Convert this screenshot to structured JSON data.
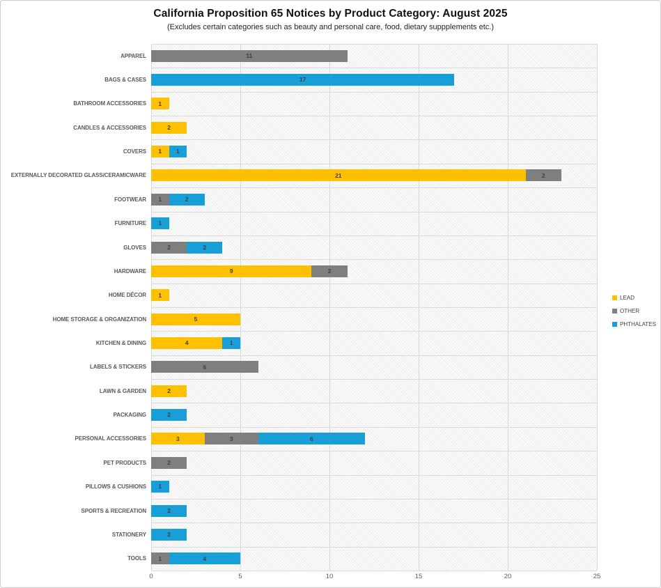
{
  "chart_data": {
    "type": "bar",
    "orientation": "horizontal",
    "stacked": true,
    "title": "California Proposition 65 Notices by Product Category: August 2025",
    "subtitle": "(Excludes certain categories such as beauty and personal care, food, dietary suppplements etc.)",
    "categories": [
      "APPAREL",
      "BAGS & CASES",
      "BATHROOM ACCESSORIES",
      "CANDLES & ACCESSORIES",
      "COVERS",
      "EXTERNALLY DECORATED GLASS/CERAMICWARE",
      "FOOTWEAR",
      "FURNITURE",
      "GLOVES",
      "HARDWARE",
      "HOME DÉCOR",
      "HOME STORAGE & ORGANIZATION",
      "KITCHEN & DINING",
      "LABELS & STICKERS",
      "LAWN & GARDEN",
      "PACKAGING",
      "PERSONAL ACCESSORIES",
      "PET PRODUCTS",
      "PILLOWS & CUSHIONS",
      "SPORTS & RECREATION",
      "STATIONERY",
      "TOOLS"
    ],
    "series": [
      {
        "name": "LEAD",
        "color": "#FFC000",
        "values": [
          0,
          0,
          1,
          2,
          1,
          21,
          0,
          0,
          0,
          9,
          1,
          5,
          4,
          0,
          2,
          0,
          3,
          0,
          0,
          0,
          0,
          0
        ]
      },
      {
        "name": "OTHER",
        "color": "#7F7F7F",
        "values": [
          11,
          0,
          0,
          0,
          0,
          2,
          1,
          0,
          2,
          2,
          0,
          0,
          0,
          6,
          0,
          0,
          3,
          2,
          0,
          0,
          0,
          1
        ]
      },
      {
        "name": "PHTHALATES",
        "color": "#189FD7",
        "values": [
          0,
          17,
          0,
          0,
          1,
          0,
          2,
          1,
          2,
          0,
          0,
          0,
          1,
          0,
          0,
          2,
          6,
          0,
          1,
          2,
          2,
          4
        ]
      }
    ],
    "xlim": [
      0,
      25
    ],
    "xticks": [
      0,
      5,
      10,
      15,
      20,
      25
    ],
    "xlabel": "",
    "ylabel": "",
    "grid": true,
    "data_labels": true,
    "legend_position": "right"
  }
}
